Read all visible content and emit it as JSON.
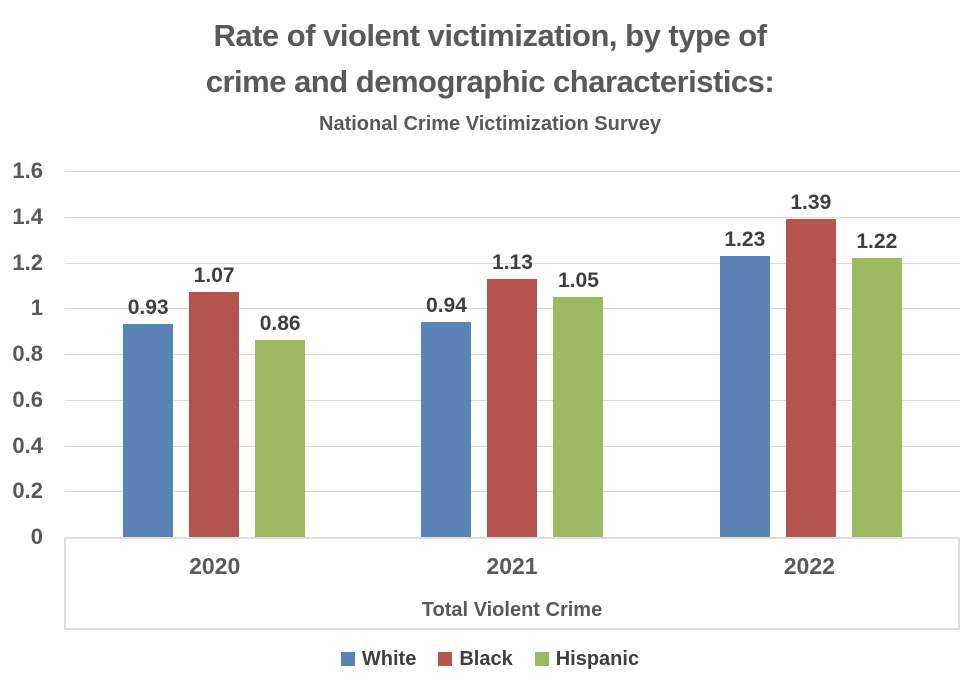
{
  "header": {
    "title_line1": "Rate of violent victimization, by type of",
    "title_line2": "crime and demographic characteristics:",
    "subtitle": "National Crime Victimization Survey"
  },
  "chart_data": {
    "type": "bar",
    "title": "Rate of violent victimization, by type of crime and demographic characteristics:",
    "subtitle": "National Crime Victimization Survey",
    "categories": [
      "2020",
      "2021",
      "2022"
    ],
    "series": [
      {
        "name": "White",
        "color": "#5a83b8",
        "values": [
          0.93,
          0.94,
          1.23
        ]
      },
      {
        "name": "Black",
        "color": "#b5544f",
        "values": [
          1.07,
          1.13,
          1.39
        ]
      },
      {
        "name": "Hispanic",
        "color": "#9dba62",
        "values": [
          0.86,
          1.05,
          1.22
        ]
      }
    ],
    "xlabel": "Total Violent Crime",
    "ylabel": "",
    "ylim": [
      0,
      1.6
    ],
    "ytick_step": 0.2,
    "yticks": [
      "1.6",
      "1.4",
      "1.2",
      "1",
      "0.8",
      "0.6",
      "0.4",
      "0.2",
      "0"
    ],
    "grid": true,
    "data_labels": true,
    "legend_position": "bottom"
  },
  "colors": {
    "title_text": "#595959",
    "axis_text": "#595959",
    "data_label_text": "#3f3f3f",
    "gridline": "#d9d9d9",
    "axis_box_border": "#dedede",
    "background": "#ffffff"
  }
}
